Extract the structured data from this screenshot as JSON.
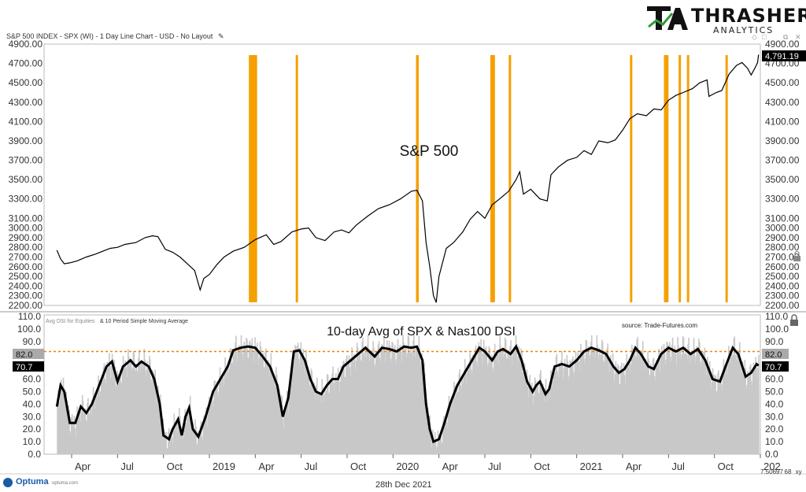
{
  "header": {
    "chart_title": "S&P 500 INDEX - SPX (WI) - 1 Day Line Chart - USD - No Layout",
    "edit_icon": "pencil-icon"
  },
  "logo": {
    "word": "THRASHER",
    "sub": "ANALYTICS",
    "mark": "TA"
  },
  "window_controls": [
    "diamond-icon",
    "square-icon",
    "copy-icon",
    "close-icon"
  ],
  "footer": {
    "date": "28th Dec 2021",
    "brand": "Optuma",
    "brand_url": "optuma.com",
    "zoom_value": "7.50697 68",
    "zoom_label": "xy"
  },
  "colors": {
    "price_line": "#000000",
    "highlight": "#f5a000",
    "dsi_bars": "#c8c8c8",
    "threshold": "#f08000",
    "axis_text": "#333333"
  },
  "chart_data": [
    {
      "type": "line",
      "title": "S&P 500",
      "series": [
        {
          "name": "S&P 500",
          "points": [
            [
              2018.17,
              2770
            ],
            [
              2018.19,
              2680
            ],
            [
              2018.21,
              2630
            ],
            [
              2018.24,
              2640
            ],
            [
              2018.28,
              2660
            ],
            [
              2018.33,
              2700
            ],
            [
              2018.38,
              2730
            ],
            [
              2018.42,
              2760
            ],
            [
              2018.46,
              2790
            ],
            [
              2018.5,
              2800
            ],
            [
              2018.54,
              2830
            ],
            [
              2018.6,
              2850
            ],
            [
              2018.65,
              2900
            ],
            [
              2018.69,
              2920
            ],
            [
              2018.72,
              2910
            ],
            [
              2018.76,
              2780
            ],
            [
              2018.8,
              2750
            ],
            [
              2018.84,
              2700
            ],
            [
              2018.88,
              2630
            ],
            [
              2018.92,
              2560
            ],
            [
              2018.95,
              2360
            ],
            [
              2018.97,
              2480
            ],
            [
              2019.0,
              2520
            ],
            [
              2019.04,
              2620
            ],
            [
              2019.08,
              2700
            ],
            [
              2019.13,
              2760
            ],
            [
              2019.19,
              2800
            ],
            [
              2019.25,
              2880
            ],
            [
              2019.31,
              2930
            ],
            [
              2019.35,
              2830
            ],
            [
              2019.39,
              2860
            ],
            [
              2019.45,
              2960
            ],
            [
              2019.5,
              2990
            ],
            [
              2019.54,
              3000
            ],
            [
              2019.58,
              2900
            ],
            [
              2019.63,
              2870
            ],
            [
              2019.68,
              2960
            ],
            [
              2019.72,
              2980
            ],
            [
              2019.76,
              2950
            ],
            [
              2019.8,
              3030
            ],
            [
              2019.86,
              3120
            ],
            [
              2019.92,
              3200
            ],
            [
              2019.98,
              3240
            ],
            [
              2020.04,
              3300
            ],
            [
              2020.1,
              3380
            ],
            [
              2020.13,
              3390
            ],
            [
              2020.16,
              3280
            ],
            [
              2020.18,
              2850
            ],
            [
              2020.2,
              2600
            ],
            [
              2020.22,
              2300
            ],
            [
              2020.235,
              2230
            ],
            [
              2020.25,
              2500
            ],
            [
              2020.29,
              2790
            ],
            [
              2020.33,
              2850
            ],
            [
              2020.38,
              2960
            ],
            [
              2020.42,
              3090
            ],
            [
              2020.46,
              3170
            ],
            [
              2020.5,
              3100
            ],
            [
              2020.54,
              3240
            ],
            [
              2020.58,
              3300
            ],
            [
              2020.63,
              3380
            ],
            [
              2020.67,
              3500
            ],
            [
              2020.69,
              3580
            ],
            [
              2020.71,
              3350
            ],
            [
              2020.75,
              3400
            ],
            [
              2020.8,
              3300
            ],
            [
              2020.84,
              3280
            ],
            [
              2020.86,
              3550
            ],
            [
              2020.9,
              3630
            ],
            [
              2020.95,
              3700
            ],
            [
              2021.0,
              3730
            ],
            [
              2021.04,
              3800
            ],
            [
              2021.08,
              3760
            ],
            [
              2021.12,
              3900
            ],
            [
              2021.17,
              3880
            ],
            [
              2021.21,
              3910
            ],
            [
              2021.25,
              4010
            ],
            [
              2021.29,
              4130
            ],
            [
              2021.33,
              4180
            ],
            [
              2021.38,
              4160
            ],
            [
              2021.42,
              4230
            ],
            [
              2021.46,
              4220
            ],
            [
              2021.5,
              4320
            ],
            [
              2021.54,
              4370
            ],
            [
              2021.58,
              4400
            ],
            [
              2021.63,
              4440
            ],
            [
              2021.67,
              4500
            ],
            [
              2021.71,
              4530
            ],
            [
              2021.72,
              4360
            ],
            [
              2021.76,
              4400
            ],
            [
              2021.79,
              4420
            ],
            [
              2021.83,
              4590
            ],
            [
              2021.87,
              4680
            ],
            [
              2021.9,
              4710
            ],
            [
              2021.93,
              4650
            ],
            [
              2021.95,
              4580
            ],
            [
              2021.97,
              4650
            ],
            [
              2021.985,
              4710
            ],
            [
              2021.99,
              4791.19
            ]
          ]
        }
      ],
      "last_value": "4,791.19",
      "ylim": [
        2200,
        4900
      ],
      "y_ticks": [
        "2200.00",
        "2300.00",
        "2400.00",
        "2500.00",
        "2600.00",
        "2700.00",
        "2800.00",
        "2900.00",
        "3000.00",
        "3100.00",
        "3300.00",
        "3500.00",
        "3700.00",
        "3900.00",
        "4100.00",
        "4300.00",
        "4500.00",
        "4700.00",
        "4900.00"
      ],
      "right_ticks": [
        "2200.00",
        "2300.00",
        "2400.00",
        "2500.00",
        "2600.00",
        "2700.00",
        "2800.00",
        "2900.00",
        "3000.00",
        "3100.00",
        "3300.00",
        "3500.00",
        "3700.00",
        "3900.00",
        "4100.00",
        "4300.00",
        "4500.00",
        "4700.00",
        "4900.00"
      ],
      "right_top_label": "4900.00",
      "highlight_ranges": [
        [
          2019.215,
          2019.26
        ],
        [
          2019.47,
          2019.48
        ],
        [
          2020.125,
          2020.14
        ],
        [
          2020.53,
          2020.555
        ],
        [
          2020.63,
          2020.64
        ],
        [
          2021.29,
          2021.3
        ],
        [
          2021.475,
          2021.5
        ],
        [
          2021.555,
          2021.565
        ],
        [
          2021.6,
          2021.61
        ],
        [
          2021.81,
          2021.82
        ]
      ]
    },
    {
      "type": "bar",
      "title": "10-day Avg of SPX & Nas100 DSI",
      "legend": [
        "Avg DSI for Equities",
        "& 10 Period Simple Moving Average"
      ],
      "source": "source: Trade-Futures.com",
      "ylim": [
        0,
        110
      ],
      "y_ticks": [
        "0.0",
        "10.0",
        "20.0",
        "30.0",
        "40.0",
        "50.0",
        "60.0",
        "70.0",
        "80.0",
        "90.0",
        "100.0",
        "110.0"
      ],
      "threshold": 82.0,
      "threshold_label": "82.0",
      "current_value": 70.7,
      "current_label": "70.7",
      "sma": [
        [
          2018.17,
          38
        ],
        [
          2018.19,
          55
        ],
        [
          2018.21,
          50
        ],
        [
          2018.24,
          25
        ],
        [
          2018.27,
          25
        ],
        [
          2018.3,
          38
        ],
        [
          2018.33,
          33
        ],
        [
          2018.36,
          40
        ],
        [
          2018.4,
          55
        ],
        [
          2018.44,
          70
        ],
        [
          2018.47,
          74
        ],
        [
          2018.5,
          58
        ],
        [
          2018.53,
          70
        ],
        [
          2018.57,
          75
        ],
        [
          2018.6,
          70
        ],
        [
          2018.63,
          74
        ],
        [
          2018.67,
          70
        ],
        [
          2018.7,
          60
        ],
        [
          2018.73,
          40
        ],
        [
          2018.75,
          15
        ],
        [
          2018.78,
          12
        ],
        [
          2018.8,
          20
        ],
        [
          2018.83,
          28
        ],
        [
          2018.85,
          15
        ],
        [
          2018.87,
          30
        ],
        [
          2018.89,
          37
        ],
        [
          2018.91,
          20
        ],
        [
          2018.94,
          14
        ],
        [
          2018.98,
          30
        ],
        [
          2019.02,
          50
        ],
        [
          2019.06,
          60
        ],
        [
          2019.1,
          70
        ],
        [
          2019.13,
          83
        ],
        [
          2019.17,
          85
        ],
        [
          2019.21,
          86
        ],
        [
          2019.25,
          85
        ],
        [
          2019.29,
          78
        ],
        [
          2019.33,
          70
        ],
        [
          2019.37,
          55
        ],
        [
          2019.4,
          30
        ],
        [
          2019.43,
          45
        ],
        [
          2019.46,
          82
        ],
        [
          2019.49,
          83
        ],
        [
          2019.52,
          75
        ],
        [
          2019.55,
          60
        ],
        [
          2019.58,
          50
        ],
        [
          2019.61,
          48
        ],
        [
          2019.64,
          55
        ],
        [
          2019.67,
          60
        ],
        [
          2019.7,
          60
        ],
        [
          2019.73,
          70
        ],
        [
          2019.77,
          75
        ],
        [
          2019.81,
          80
        ],
        [
          2019.85,
          85
        ],
        [
          2019.9,
          78
        ],
        [
          2019.94,
          85
        ],
        [
          2019.98,
          84
        ],
        [
          2020.02,
          82
        ],
        [
          2020.06,
          86
        ],
        [
          2020.1,
          85
        ],
        [
          2020.13,
          86
        ],
        [
          2020.16,
          75
        ],
        [
          2020.18,
          40
        ],
        [
          2020.2,
          20
        ],
        [
          2020.22,
          10
        ],
        [
          2020.25,
          12
        ],
        [
          2020.28,
          25
        ],
        [
          2020.31,
          40
        ],
        [
          2020.35,
          55
        ],
        [
          2020.39,
          65
        ],
        [
          2020.43,
          75
        ],
        [
          2020.47,
          85
        ],
        [
          2020.5,
          82
        ],
        [
          2020.54,
          75
        ],
        [
          2020.57,
          82
        ],
        [
          2020.6,
          84
        ],
        [
          2020.64,
          80
        ],
        [
          2020.67,
          86
        ],
        [
          2020.7,
          75
        ],
        [
          2020.73,
          58
        ],
        [
          2020.76,
          50
        ],
        [
          2020.78,
          55
        ],
        [
          2020.8,
          58
        ],
        [
          2020.83,
          48
        ],
        [
          2020.85,
          52
        ],
        [
          2020.88,
          70
        ],
        [
          2020.92,
          72
        ],
        [
          2020.96,
          70
        ],
        [
          2021.0,
          75
        ],
        [
          2021.04,
          82
        ],
        [
          2021.08,
          85
        ],
        [
          2021.12,
          83
        ],
        [
          2021.16,
          80
        ],
        [
          2021.2,
          70
        ],
        [
          2021.23,
          65
        ],
        [
          2021.26,
          68
        ],
        [
          2021.29,
          75
        ],
        [
          2021.32,
          85
        ],
        [
          2021.35,
          80
        ],
        [
          2021.39,
          70
        ],
        [
          2021.42,
          68
        ],
        [
          2021.46,
          80
        ],
        [
          2021.5,
          85
        ],
        [
          2021.54,
          82
        ],
        [
          2021.58,
          85
        ],
        [
          2021.62,
          80
        ],
        [
          2021.66,
          84
        ],
        [
          2021.7,
          75
        ],
        [
          2021.74,
          60
        ],
        [
          2021.78,
          58
        ],
        [
          2021.81,
          70
        ],
        [
          2021.85,
          85
        ],
        [
          2021.88,
          80
        ],
        [
          2021.92,
          62
        ],
        [
          2021.95,
          65
        ],
        [
          2021.98,
          72
        ],
        [
          2021.99,
          70.7
        ]
      ],
      "x_ticks": [
        "Apr",
        "Jul",
        "Oct",
        "2019",
        "Apr",
        "Jul",
        "Oct",
        "2020",
        "Apr",
        "Jul",
        "Oct",
        "2021",
        "Apr",
        "Jul",
        "Oct",
        "202"
      ]
    }
  ]
}
